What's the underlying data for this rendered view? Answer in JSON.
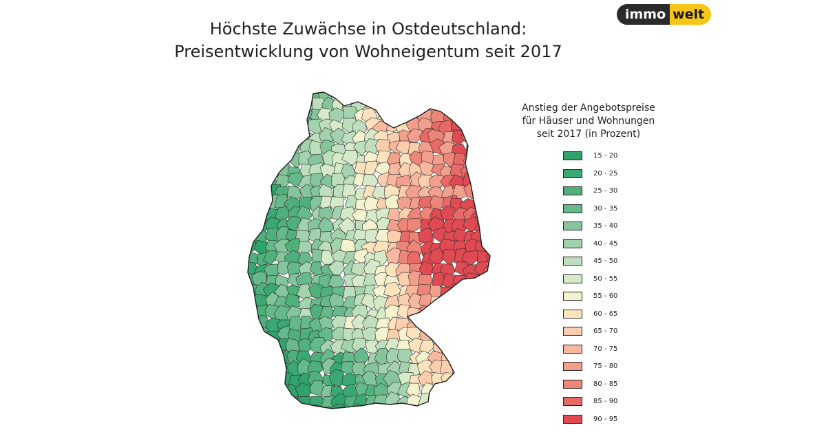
{
  "logo": {
    "part1": "immo",
    "part2": "welt",
    "color_dark": "#2b2b2b",
    "color_accent": "#f5c518"
  },
  "title": {
    "line1": "Höchste Zuwächse in Ostdeutschland:",
    "line2": "Preisentwicklung von Wohneigentum seit 2017"
  },
  "legend": {
    "title_line1": "Anstieg der Angebotspreise",
    "title_line2": "für Häuser und Wohnungen",
    "title_line3": "seit 2017 (in Prozent)",
    "items": [
      {
        "label": "15 - 20",
        "color": "#2fa36b"
      },
      {
        "label": "20 - 25",
        "color": "#3aa872"
      },
      {
        "label": "25 - 30",
        "color": "#4fb07c"
      },
      {
        "label": "30 - 35",
        "color": "#65b98a"
      },
      {
        "label": "35 - 40",
        "color": "#85c59c"
      },
      {
        "label": "40 - 45",
        "color": "#a3d2ae"
      },
      {
        "label": "45 - 50",
        "color": "#bedfbd"
      },
      {
        "label": "50 - 55",
        "color": "#d6e9c8"
      },
      {
        "label": "55 - 60",
        "color": "#f5f2cf"
      },
      {
        "label": "60 - 65",
        "color": "#fde3bd"
      },
      {
        "label": "65 - 70",
        "color": "#fbcfad"
      },
      {
        "label": "70 - 75",
        "color": "#f8b8a0"
      },
      {
        "label": "75 - 80",
        "color": "#f39f8e"
      },
      {
        "label": "80 - 85",
        "color": "#ee8579"
      },
      {
        "label": "85 - 90",
        "color": "#e86a66"
      },
      {
        "label": "90 - 95",
        "color": "#e04a52"
      }
    ]
  },
  "map": {
    "region_name": "Deutschland",
    "pattern": "Höchste Zuwächse in Ostdeutschland"
  }
}
